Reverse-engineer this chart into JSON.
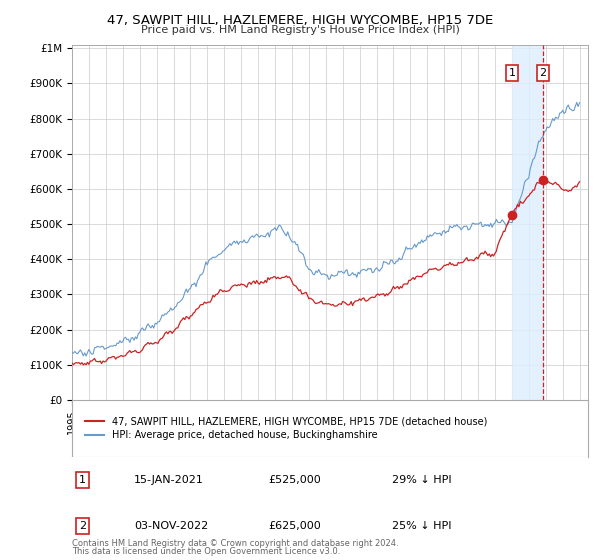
{
  "title": "47, SAWPIT HILL, HAZLEMERE, HIGH WYCOMBE, HP15 7DE",
  "subtitle": "Price paid vs. HM Land Registry's House Price Index (HPI)",
  "background_color": "#ffffff",
  "plot_bg_color": "#ffffff",
  "grid_color": "#cccccc",
  "hpi_color": "#6699cc",
  "price_color": "#cc2222",
  "legend_entry1": "47, SAWPIT HILL, HAZLEMERE, HIGH WYCOMBE, HP15 7DE (detached house)",
  "legend_entry2": "HPI: Average price, detached house, Buckinghamshire",
  "sale1_date": "15-JAN-2021",
  "sale1_price": "£525,000",
  "sale1_hpi": "29% ↓ HPI",
  "sale2_date": "03-NOV-2022",
  "sale2_price": "£625,000",
  "sale2_hpi": "25% ↓ HPI",
  "footnote1": "Contains HM Land Registry data © Crown copyright and database right 2024.",
  "footnote2": "This data is licensed under the Open Government Licence v3.0.",
  "ylim_max": 1000000,
  "shaded_region_color": "#ddeeff",
  "yticks": [
    0,
    100000,
    200000,
    300000,
    400000,
    500000,
    600000,
    700000,
    800000,
    900000,
    1000000
  ],
  "ylabels": [
    "£0",
    "£100K",
    "£200K",
    "£300K",
    "£400K",
    "£500K",
    "£600K",
    "£700K",
    "£800K",
    "£900K",
    "£1M"
  ]
}
